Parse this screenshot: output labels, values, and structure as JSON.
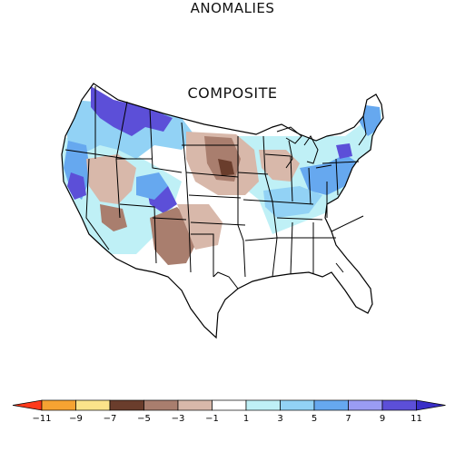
{
  "title": "ANOMALIES",
  "subtitle": "COMPOSITE",
  "legend": {
    "ticks": [
      "-11",
      "-9",
      "-7",
      "-5",
      "-3",
      "-1",
      "1",
      "3",
      "5",
      "7",
      "9",
      "11"
    ],
    "colors": [
      "#ff3a1c",
      "#f6a332",
      "#fbe38a",
      "#6a3d2c",
      "#a97e6e",
      "#d8b8aa",
      "#ffffff",
      "#bff0f6",
      "#92d2f5",
      "#66a8ef",
      "#9a9cf3",
      "#5c4fd8",
      "#3a2fc8"
    ]
  },
  "anomaly_palette": {
    "deep_blue": "#5c4fd8",
    "blue": "#66a8ef",
    "light_blue": "#92d2f5",
    "pale_cyan": "#bff0f6",
    "tan": "#d8b8aa",
    "brown": "#a97e6e",
    "dark_brown": "#6a3d2c"
  }
}
